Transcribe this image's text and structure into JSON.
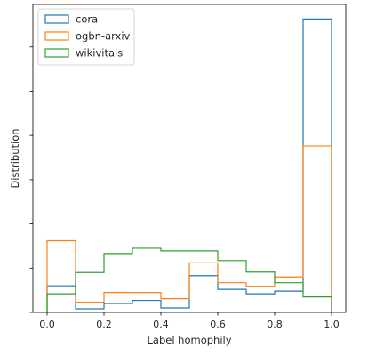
{
  "chart_data": {
    "type": "histogram",
    "xlabel": "Label homophily",
    "ylabel": "Distribution",
    "xlim": [
      -0.05,
      1.05
    ],
    "ylim": [
      0,
      6.96
    ],
    "xticks": [
      "0.0",
      "0.2",
      "0.4",
      "0.6",
      "0.8",
      "1.0"
    ],
    "show_y_tick_labels": false,
    "yticks": [
      0,
      1,
      2,
      3,
      4,
      5,
      6
    ],
    "grid": false,
    "legend_position": "top-left",
    "bin_edges": [
      0.0,
      0.1,
      0.2,
      0.3,
      0.4,
      0.5,
      0.6,
      0.7,
      0.8,
      0.9,
      1.0
    ],
    "series": [
      {
        "name": "cora",
        "color": "#1f77b4",
        "values": [
          0.6,
          0.08,
          0.2,
          0.27,
          0.1,
          0.83,
          0.52,
          0.42,
          0.48,
          6.63
        ]
      },
      {
        "name": "ogbn-arxiv",
        "color": "#ff7f0e",
        "values": [
          1.62,
          0.23,
          0.45,
          0.45,
          0.31,
          1.12,
          0.67,
          0.59,
          0.8,
          3.76
        ]
      },
      {
        "name": "wikivitals",
        "color": "#2ca02c",
        "values": [
          0.42,
          0.9,
          1.33,
          1.45,
          1.39,
          1.39,
          1.17,
          0.91,
          0.67,
          0.35
        ]
      }
    ]
  }
}
